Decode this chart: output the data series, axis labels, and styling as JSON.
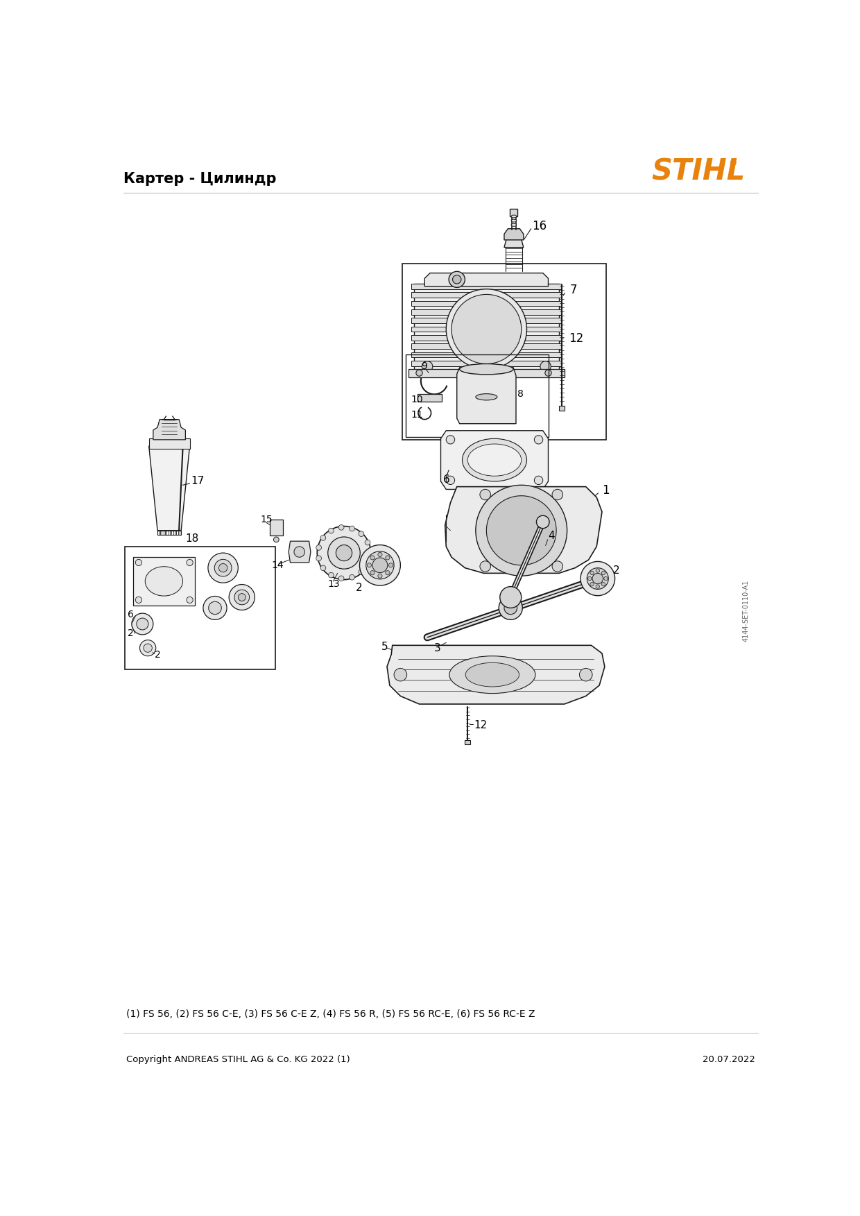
{
  "title": "Картер - Цилиндр",
  "stihl_logo_color": "#E8820C",
  "background_color": "#FFFFFF",
  "footer_left": "Copyright ANDREAS STIHL AG & Co. KG 2022 (1)",
  "footer_right": "20.07.2022",
  "compatibility_text": "(1) FS 56, (2) FS 56 C-E, (3) FS 56 C-E Z, (4) FS 56 R, (5) FS 56 RC-E, (6) FS 56 RC-E Z",
  "part_number_ref": "4144-SET-0110-A1",
  "header_line_color": "#CCCCCC",
  "footer_line_color": "#CCCCCC",
  "text_color": "#000000",
  "diagram_color": "#1A1A1A",
  "label_fontsize": 11,
  "title_fontsize": 15,
  "logo_fontsize": 30
}
